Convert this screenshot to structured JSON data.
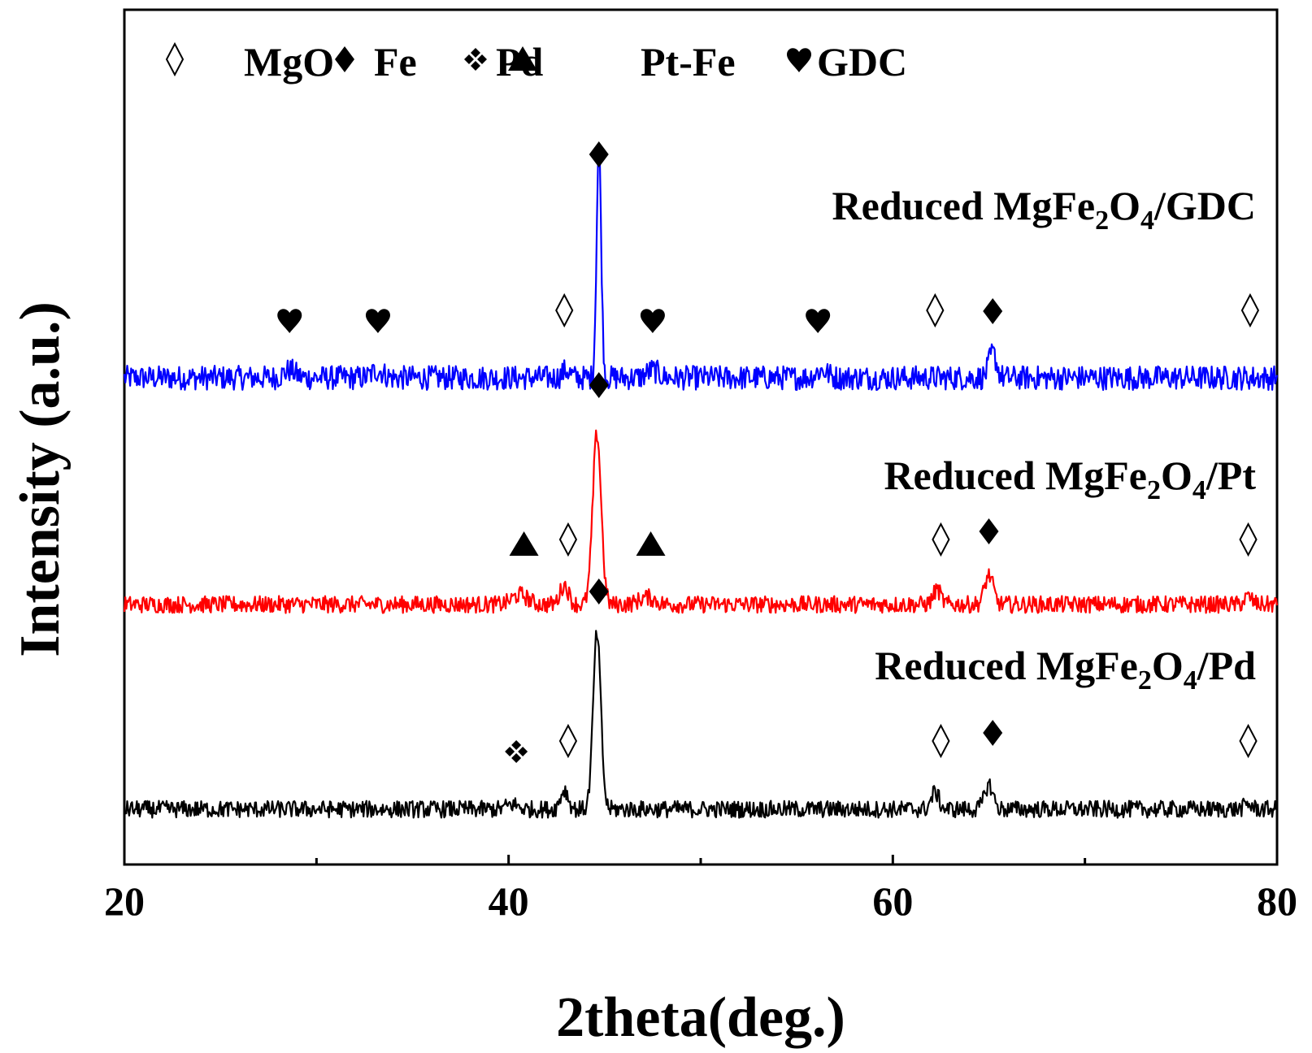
{
  "chart_data": {
    "type": "line",
    "xlabel": "2theta(deg.)",
    "ylabel": "Intensity (a.u.)",
    "xlim": [
      20,
      80
    ],
    "xticks": [
      20,
      40,
      60,
      80
    ],
    "x_minor_ticks": [
      30,
      50,
      70
    ],
    "yticks": "none",
    "grid": false,
    "legend": {
      "placement": "top-left",
      "entries": [
        {
          "symbol": "open-diamond",
          "label": "MgO"
        },
        {
          "symbol": "filled-diamond",
          "label": "Fe"
        },
        {
          "symbol": "four-diamond",
          "label": "Pd"
        },
        {
          "symbol": "triangle",
          "label": "Pt-Fe"
        },
        {
          "symbol": "heart",
          "label": "GDC"
        }
      ]
    },
    "series": [
      {
        "id": "gdc",
        "label_parts": [
          "Reduced MgFe",
          "2",
          "O",
          "4",
          "/GDC"
        ],
        "color": "#0000ff",
        "baseline": 1.95,
        "noise": 0.05,
        "peaks": [
          {
            "x": 44.7,
            "height": 0.95,
            "width": 0.12,
            "phase": "Fe"
          },
          {
            "x": 43.0,
            "height": 0.03,
            "width": 0.2,
            "phase": "MgO"
          },
          {
            "x": 65.2,
            "height": 0.1,
            "width": 0.2,
            "phase": "Fe"
          },
          {
            "x": 28.6,
            "height": 0.03,
            "width": 0.3,
            "phase": "GDC"
          },
          {
            "x": 33.2,
            "height": 0.03,
            "width": 0.3,
            "phase": "GDC"
          },
          {
            "x": 47.5,
            "height": 0.03,
            "width": 0.3,
            "phase": "GDC"
          },
          {
            "x": 56.3,
            "height": 0.03,
            "width": 0.3,
            "phase": "GDC"
          }
        ],
        "markers": [
          {
            "x": 44.7,
            "symbol": "filled-diamond"
          },
          {
            "x": 42.9,
            "symbol": "open-diamond"
          },
          {
            "x": 28.6,
            "symbol": "heart"
          },
          {
            "x": 33.2,
            "symbol": "heart"
          },
          {
            "x": 47.5,
            "symbol": "heart"
          },
          {
            "x": 56.1,
            "symbol": "heart"
          },
          {
            "x": 62.2,
            "symbol": "open-diamond"
          },
          {
            "x": 65.2,
            "symbol": "filled-diamond"
          },
          {
            "x": 78.6,
            "symbol": "open-diamond"
          }
        ]
      },
      {
        "id": "pt",
        "label_parts": [
          "Reduced MgFe",
          "2",
          "O",
          "4",
          "/Pt"
        ],
        "color": "#ff0000",
        "baseline": 1.02,
        "noise": 0.035,
        "peaks": [
          {
            "x": 44.6,
            "height": 0.7,
            "width": 0.22,
            "phase": "Fe"
          },
          {
            "x": 42.9,
            "height": 0.08,
            "width": 0.22,
            "phase": "MgO"
          },
          {
            "x": 40.6,
            "height": 0.04,
            "width": 0.4,
            "phase": "Pt-Fe"
          },
          {
            "x": 47.2,
            "height": 0.03,
            "width": 0.4,
            "phase": "Pt-Fe"
          },
          {
            "x": 62.3,
            "height": 0.06,
            "width": 0.2,
            "phase": "MgO"
          },
          {
            "x": 65.0,
            "height": 0.12,
            "width": 0.22,
            "phase": "Fe"
          },
          {
            "x": 78.5,
            "height": 0.03,
            "width": 0.2,
            "phase": "MgO"
          }
        ],
        "markers": [
          {
            "x": 44.7,
            "symbol": "filled-diamond"
          },
          {
            "x": 40.8,
            "symbol": "triangle"
          },
          {
            "x": 43.1,
            "symbol": "open-diamond"
          },
          {
            "x": 47.4,
            "symbol": "triangle"
          },
          {
            "x": 62.5,
            "symbol": "open-diamond"
          },
          {
            "x": 65.0,
            "symbol": "filled-diamond"
          },
          {
            "x": 78.5,
            "symbol": "open-diamond"
          }
        ]
      },
      {
        "id": "pd",
        "label_parts": [
          "Reduced MgFe",
          "2",
          "O",
          "4",
          "/Pd"
        ],
        "color": "#000000",
        "baseline": 0.18,
        "noise": 0.035,
        "peaks": [
          {
            "x": 44.6,
            "height": 0.72,
            "width": 0.2,
            "phase": "Fe"
          },
          {
            "x": 42.9,
            "height": 0.08,
            "width": 0.2,
            "phase": "MgO"
          },
          {
            "x": 40.2,
            "height": 0.02,
            "width": 0.3,
            "phase": "Pd"
          },
          {
            "x": 62.2,
            "height": 0.07,
            "width": 0.2,
            "phase": "MgO"
          },
          {
            "x": 65.0,
            "height": 0.1,
            "width": 0.22,
            "phase": "Fe"
          },
          {
            "x": 78.5,
            "height": 0.02,
            "width": 0.2,
            "phase": "MgO"
          }
        ],
        "markers": [
          {
            "x": 44.7,
            "symbol": "filled-diamond"
          },
          {
            "x": 40.4,
            "symbol": "four-diamond"
          },
          {
            "x": 43.1,
            "symbol": "open-diamond"
          },
          {
            "x": 62.5,
            "symbol": "open-diamond"
          },
          {
            "x": 65.2,
            "symbol": "filled-diamond"
          },
          {
            "x": 78.5,
            "symbol": "open-diamond"
          }
        ]
      }
    ]
  }
}
